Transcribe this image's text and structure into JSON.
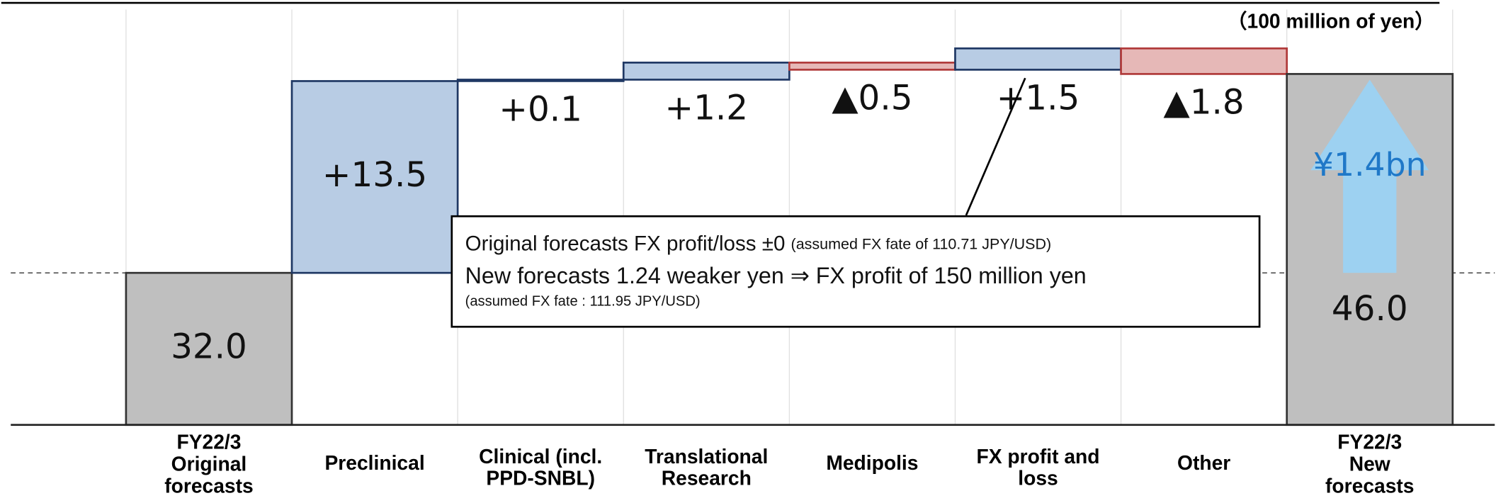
{
  "chart_data": {
    "type": "waterfall",
    "unit_label": "（100 million of yen）",
    "categories": [
      [
        "FY22/3",
        "Original",
        "forecasts"
      ],
      [
        "Preclinical"
      ],
      [
        "Clinical (incl.",
        "PPD-SNBL)"
      ],
      [
        "Translational",
        "Research"
      ],
      [
        "Medipolis"
      ],
      [
        "FX profit and",
        "loss"
      ],
      [
        "Other"
      ],
      [
        "FY22/3",
        "New",
        "forecasts"
      ]
    ],
    "values": [
      32.0,
      13.5,
      0.1,
      1.2,
      -0.5,
      1.5,
      -1.8,
      46.0
    ],
    "value_labels": [
      "32.0",
      "+13.5",
      "+0.1",
      "+1.2",
      "▲0.5",
      "+1.5",
      "▲1.8",
      "46.0"
    ],
    "totals": [
      0,
      7
    ],
    "colors": {
      "total": "#bfbfbf",
      "increase": "#b8cce4",
      "decrease": "#e6b8b7"
    },
    "ylim": [
      21.3,
      50
    ],
    "arrow_label": "¥1.4bn",
    "annotation": [
      "Original forecasts FX profit/loss ±0",
      "(assumed FX fate of 110.71 JPY/USD)",
      "New forecasts 1.24 weaker yen ⇒ FX profit of 150 million yen",
      "(assumed FX fate : 111.95 JPY/USD)"
    ]
  }
}
